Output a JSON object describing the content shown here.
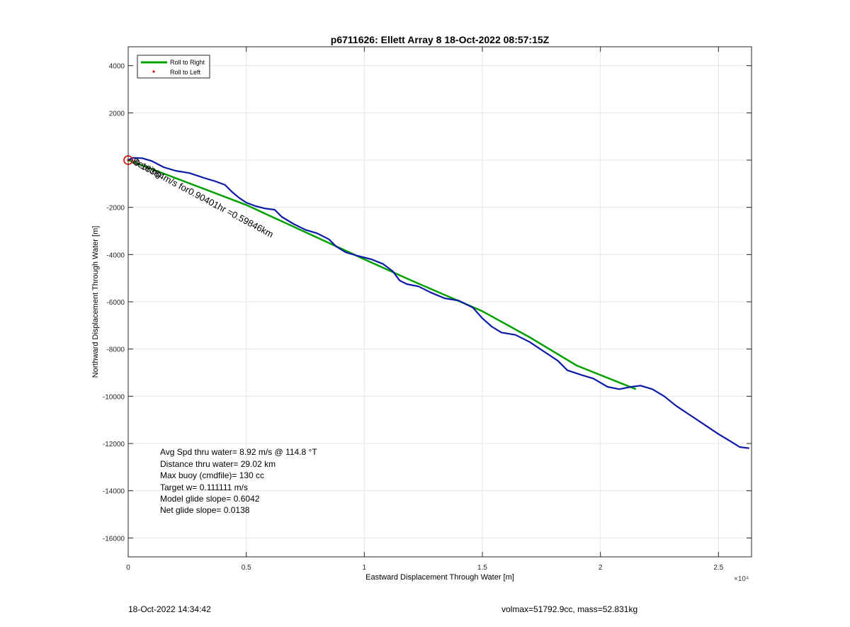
{
  "chart_data": {
    "type": "line",
    "title": "p6711626: Ellett Array 8 18-Oct-2022 08:57:15Z",
    "xlabel": "Eastward Displacement Through Water [m]",
    "ylabel": "Northward Displacement Through Water [m]",
    "x_exponent_label": "×10⁴",
    "xlim": [
      0,
      26400
    ],
    "ylim": [
      -16800,
      4800
    ],
    "x_ticks": [
      0,
      5000,
      10000,
      15000,
      20000,
      25000
    ],
    "x_tick_labels": [
      "0",
      "0.5",
      "1",
      "1.5",
      "2",
      "2.5"
    ],
    "y_ticks": [
      4000,
      2000,
      0,
      -2000,
      -4000,
      -6000,
      -8000,
      -10000,
      -12000,
      -14000,
      -16000
    ],
    "y_tick_labels": [
      "4000",
      "2000",
      "",
      "-2000",
      "-4000",
      "-6000",
      "-8000",
      "-10000",
      "-12000",
      "-14000",
      "-16000"
    ],
    "grid": true,
    "legend_position": "top-left",
    "legend": [
      {
        "label": "Roll to Right",
        "color": "#00a000",
        "style": "line"
      },
      {
        "label": "Roll to Left",
        "color": "#e00000",
        "style": "marker"
      }
    ],
    "series": [
      {
        "name": "Roll to Right",
        "color": "#00a000",
        "x": [
          0,
          5000,
          10000,
          12000,
          15000,
          17000,
          19000,
          21500
        ],
        "y": [
          0,
          -1900,
          -4200,
          -5100,
          -6400,
          -7500,
          -8700,
          -9700
        ]
      },
      {
        "color": "#0a1aa8",
        "x": [
          0,
          200,
          600,
          1000,
          1500,
          2000,
          2600,
          3200,
          3700,
          4100,
          4400,
          4700,
          5000,
          5400,
          5800,
          6200,
          6500,
          7000,
          7500,
          8000,
          8500,
          8800,
          9200,
          9700,
          10300,
          10800,
          11200,
          11500,
          11800,
          12300,
          12800,
          13400,
          14000,
          14600,
          15000,
          15400,
          15800,
          16400,
          17000,
          17600,
          18200,
          18600,
          19200,
          19700,
          20300,
          20800,
          21300,
          21700,
          22200,
          22700,
          23200,
          23800,
          24400,
          25000,
          25500,
          25900,
          26300
        ],
        "y": [
          0,
          100,
          80,
          -40,
          -300,
          -450,
          -550,
          -750,
          -900,
          -1050,
          -1350,
          -1600,
          -1800,
          -1950,
          -2050,
          -2100,
          -2400,
          -2700,
          -2950,
          -3100,
          -3350,
          -3650,
          -3900,
          -4050,
          -4200,
          -4400,
          -4700,
          -5100,
          -5250,
          -5350,
          -5600,
          -5850,
          -5950,
          -6250,
          -6700,
          -7050,
          -7300,
          -7400,
          -7700,
          -8100,
          -8500,
          -8900,
          -9100,
          -9250,
          -9600,
          -9700,
          -9600,
          -9550,
          -9700,
          -10000,
          -10400,
          -10800,
          -11200,
          -11600,
          -11900,
          -12150,
          -12200
        ]
      },
      {
        "name": "Roll to Left",
        "color": "#e00000",
        "x": [
          0
        ],
        "y": [
          0
        ]
      }
    ],
    "annotations": {
      "segment_label": "0.18384m/s for0.90401hr =0.59846km",
      "segment_overlap_label": "Bearing",
      "stats": [
        "Avg Spd thru water=  8.92 m/s @ 114.8 °T",
        "Distance thru water= 29.02 km",
        "Max buoy (cmdfile)= 130 cc",
        "Target w= 0.111111 m/s",
        "Model glide slope= 0.6042",
        "Net glide slope= 0.0138"
      ]
    }
  },
  "footer": {
    "timestamp": "18-Oct-2022 14:34:42",
    "summary": "volmax=51792.9cc, mass=52.831kg"
  }
}
